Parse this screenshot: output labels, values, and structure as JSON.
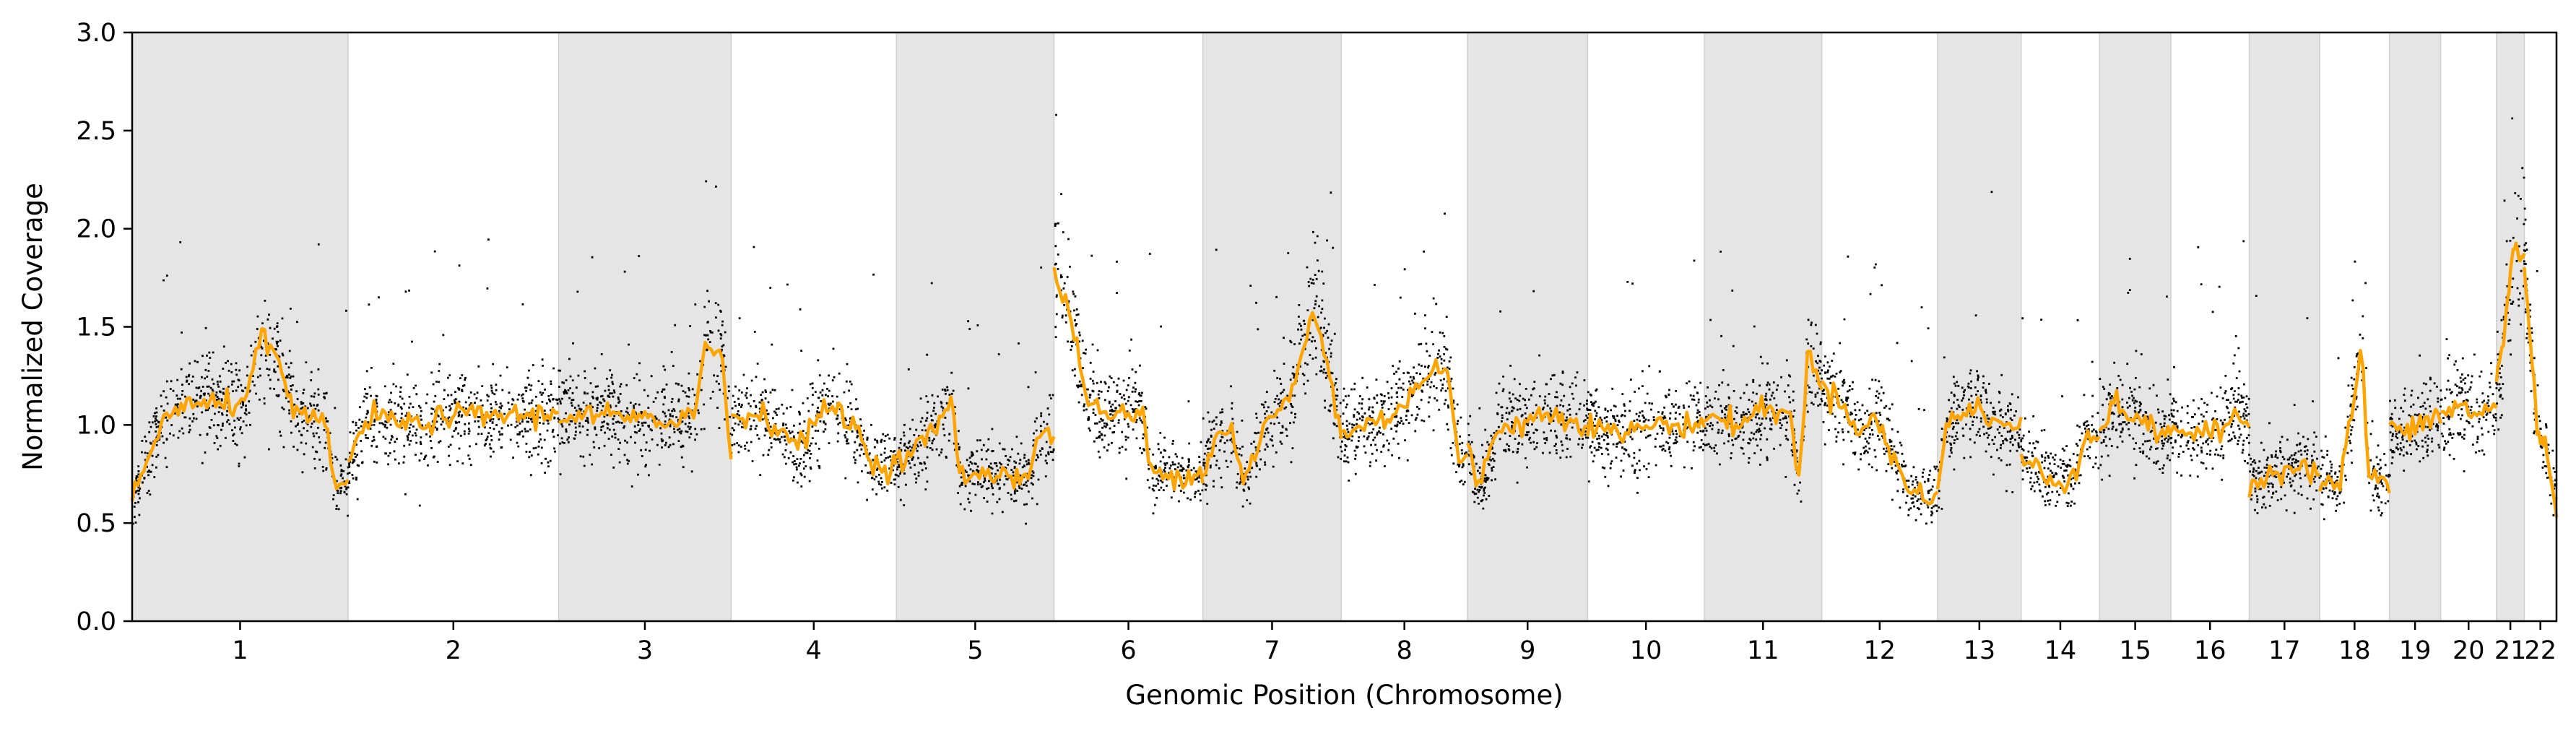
{
  "chart_data": {
    "type": "scatter",
    "title": "",
    "xlabel": "Genomic Position (Chromosome)",
    "ylabel": "Normalized Coverage",
    "ylim": [
      0,
      3
    ],
    "yticks": [
      "0.0",
      "0.5",
      "1.0",
      "1.5",
      "2.0",
      "2.5",
      "3.0"
    ],
    "grid": false,
    "legend": "none",
    "colors": {
      "points": "#000000",
      "segments": "#FFA500",
      "shade": "#e5e5e5"
    },
    "chromosomes": [
      {
        "label": "1",
        "size": 248,
        "shaded": true
      },
      {
        "label": "2",
        "size": 242,
        "shaded": false
      },
      {
        "label": "3",
        "size": 198,
        "shaded": true
      },
      {
        "label": "4",
        "size": 190,
        "shaded": false
      },
      {
        "label": "5",
        "size": 181,
        "shaded": true
      },
      {
        "label": "6",
        "size": 171,
        "shaded": false
      },
      {
        "label": "7",
        "size": 159,
        "shaded": true
      },
      {
        "label": "8",
        "size": 145,
        "shaded": false
      },
      {
        "label": "9",
        "size": 138,
        "shaded": true
      },
      {
        "label": "10",
        "size": 134,
        "shaded": false
      },
      {
        "label": "11",
        "size": 135,
        "shaded": true
      },
      {
        "label": "12",
        "size": 133,
        "shaded": false
      },
      {
        "label": "13",
        "size": 96,
        "shaded": true
      },
      {
        "label": "14",
        "size": 90,
        "shaded": false
      },
      {
        "label": "15",
        "size": 82,
        "shaded": true
      },
      {
        "label": "16",
        "size": 90,
        "shaded": false
      },
      {
        "label": "17",
        "size": 81,
        "shaded": true
      },
      {
        "label": "18",
        "size": 80,
        "shaded": false
      },
      {
        "label": "19",
        "size": 59,
        "shaded": true
      },
      {
        "label": "20",
        "size": 64,
        "shaded": false
      },
      {
        "label": "21",
        "size": 32,
        "shaded": true
      },
      {
        "label": "22",
        "size": 37,
        "shaded": false
      }
    ],
    "segments": [
      [
        [
          0,
          0.62
        ],
        [
          0.05,
          0.75
        ],
        [
          0.1,
          0.9
        ],
        [
          0.15,
          1.05
        ],
        [
          0.25,
          1.1
        ],
        [
          0.4,
          1.1
        ],
        [
          0.5,
          1.1
        ],
        [
          0.6,
          1.45
        ],
        [
          0.7,
          1.25
        ],
        [
          0.75,
          1.05
        ],
        [
          0.9,
          1.0
        ],
        [
          0.93,
          0.72
        ],
        [
          1,
          0.7
        ]
      ],
      [
        [
          0,
          0.8
        ],
        [
          0.1,
          1.05
        ],
        [
          0.3,
          1.0
        ],
        [
          0.5,
          1.05
        ],
        [
          0.7,
          1.05
        ],
        [
          1,
          1.05
        ]
      ],
      [
        [
          0,
          1.05
        ],
        [
          0.3,
          1.05
        ],
        [
          0.6,
          1.0
        ],
        [
          0.8,
          1.1
        ],
        [
          0.85,
          1.4
        ],
        [
          0.95,
          1.35
        ],
        [
          1,
          0.8
        ]
      ],
      [
        [
          0,
          1.05
        ],
        [
          0.2,
          1.05
        ],
        [
          0.4,
          0.9
        ],
        [
          0.5,
          1.0
        ],
        [
          0.6,
          1.1
        ],
        [
          0.75,
          1.0
        ],
        [
          0.85,
          0.8
        ],
        [
          1,
          0.8
        ]
      ],
      [
        [
          0,
          0.8
        ],
        [
          0.15,
          0.9
        ],
        [
          0.25,
          1.0
        ],
        [
          0.35,
          1.1
        ],
        [
          0.4,
          0.75
        ],
        [
          0.5,
          0.75
        ],
        [
          0.7,
          0.75
        ],
        [
          0.85,
          0.75
        ],
        [
          0.9,
          0.95
        ],
        [
          1,
          0.95
        ]
      ],
      [
        [
          0,
          1.75
        ],
        [
          0.1,
          1.6
        ],
        [
          0.2,
          1.2
        ],
        [
          0.3,
          1.05
        ],
        [
          0.5,
          1.05
        ],
        [
          0.6,
          1.05
        ],
        [
          0.65,
          0.75
        ],
        [
          0.8,
          0.75
        ],
        [
          1,
          0.75
        ]
      ],
      [
        [
          0,
          0.75
        ],
        [
          0.1,
          0.95
        ],
        [
          0.2,
          1.0
        ],
        [
          0.3,
          0.7
        ],
        [
          0.45,
          1.0
        ],
        [
          0.6,
          1.1
        ],
        [
          0.7,
          1.3
        ],
        [
          0.8,
          1.6
        ],
        [
          0.9,
          1.3
        ],
        [
          1,
          0.95
        ]
      ],
      [
        [
          0,
          0.95
        ],
        [
          0.2,
          1.0
        ],
        [
          0.4,
          1.05
        ],
        [
          0.6,
          1.2
        ],
        [
          0.75,
          1.3
        ],
        [
          0.85,
          1.25
        ],
        [
          0.92,
          0.85
        ],
        [
          1,
          0.8
        ]
      ],
      [
        [
          0,
          0.9
        ],
        [
          0.1,
          0.68
        ],
        [
          0.25,
          1.0
        ],
        [
          0.45,
          1.0
        ],
        [
          0.6,
          1.05
        ],
        [
          0.8,
          1.05
        ],
        [
          1,
          1.0
        ]
      ],
      [
        [
          0,
          1.0
        ],
        [
          0.3,
          0.95
        ],
        [
          0.5,
          1.0
        ],
        [
          0.7,
          1.0
        ],
        [
          1,
          1.0
        ]
      ],
      [
        [
          0,
          1.05
        ],
        [
          0.3,
          1.0
        ],
        [
          0.5,
          1.1
        ],
        [
          0.6,
          1.05
        ],
        [
          0.75,
          1.05
        ],
        [
          0.8,
          0.7
        ],
        [
          0.88,
          1.35
        ],
        [
          1,
          1.2
        ]
      ],
      [
        [
          0,
          1.2
        ],
        [
          0.2,
          1.1
        ],
        [
          0.35,
          0.95
        ],
        [
          0.45,
          1.05
        ],
        [
          0.6,
          0.85
        ],
        [
          0.7,
          0.75
        ],
        [
          0.75,
          0.65
        ],
        [
          0.9,
          0.65
        ],
        [
          1,
          0.65
        ]
      ],
      [
        [
          0,
          0.65
        ],
        [
          0.1,
          1.0
        ],
        [
          0.3,
          1.05
        ],
        [
          0.5,
          1.1
        ],
        [
          0.7,
          1.0
        ],
        [
          1,
          1.0
        ]
      ],
      [
        [
          0,
          0.8
        ],
        [
          0.2,
          0.8
        ],
        [
          0.35,
          0.72
        ],
        [
          0.6,
          0.72
        ],
        [
          0.75,
          0.8
        ],
        [
          0.8,
          0.95
        ],
        [
          1,
          0.95
        ]
      ],
      [
        [
          0,
          0.95
        ],
        [
          0.2,
          1.1
        ],
        [
          0.5,
          1.05
        ],
        [
          0.8,
          0.95
        ],
        [
          1,
          0.95
        ]
      ],
      [
        [
          0,
          1.0
        ],
        [
          0.3,
          0.95
        ],
        [
          0.6,
          0.95
        ],
        [
          0.8,
          1.05
        ],
        [
          1,
          1.0
        ]
      ],
      [
        [
          0,
          0.7
        ],
        [
          0.3,
          0.75
        ],
        [
          0.6,
          0.8
        ],
        [
          1,
          0.75
        ]
      ],
      [
        [
          0,
          0.7
        ],
        [
          0.3,
          0.7
        ],
        [
          0.6,
          1.4
        ],
        [
          0.7,
          0.75
        ],
        [
          1,
          0.7
        ]
      ],
      [
        [
          0,
          1.0
        ],
        [
          0.3,
          0.95
        ],
        [
          0.6,
          1.0
        ],
        [
          1,
          1.05
        ]
      ],
      [
        [
          0,
          1.05
        ],
        [
          0.3,
          1.1
        ],
        [
          0.6,
          1.05
        ],
        [
          1,
          1.1
        ]
      ],
      [
        [
          0,
          1.2
        ],
        [
          0.3,
          1.5
        ],
        [
          0.6,
          1.9
        ],
        [
          1,
          1.85
        ]
      ],
      [
        [
          0,
          1.8
        ],
        [
          0.4,
          1.0
        ],
        [
          0.7,
          0.85
        ],
        [
          1,
          0.6
        ]
      ]
    ]
  }
}
